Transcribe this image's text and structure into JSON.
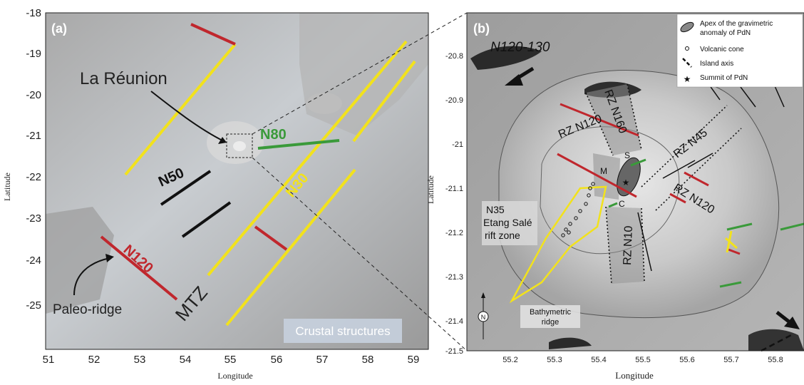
{
  "panel_a": {
    "tag": "(a)",
    "y_axis_title": "Latitude",
    "x_axis_title": "Longitude",
    "y_ticks": [
      "-18",
      "-19",
      "-20",
      "-21",
      "-22",
      "-23",
      "-24",
      "-25"
    ],
    "x_ticks": [
      "51",
      "52",
      "53",
      "54",
      "55",
      "56",
      "57",
      "58",
      "59"
    ],
    "place_label": "La Réunion",
    "paleo_label": "Paleo-ridge",
    "mtz_label": "MTZ",
    "n80_label": "N80",
    "n50_label": "N50",
    "n30_label": "N30",
    "n120_label": "N120",
    "box_caption": "Crustal structures"
  },
  "panel_b": {
    "tag": "(b)",
    "y_axis_title": "Latitude",
    "x_axis_title": "Longitude",
    "y_ticks": [
      "-20.8",
      "-20.9",
      "-21",
      "-21.1",
      "-21.2",
      "-21.3",
      "-21.4",
      "-21.5"
    ],
    "x_ticks": [
      "55.2",
      "55.3",
      "55.4",
      "55.5",
      "55.6",
      "55.7",
      "55.8"
    ],
    "direction_label": "N120-130",
    "rz_n160": "RZ N160",
    "rz_n120_a": "RZ N120",
    "rz_n45": "RZ N45",
    "rz_n120_b": "RZ N120",
    "rz_n10": "RZ N10",
    "m_label": "M",
    "s_label": "S",
    "c_label": "C",
    "etang_line1": "N35",
    "etang_line2": "Etang Salé",
    "etang_line3": "rift zone",
    "bathy_line1": "Bathymetric",
    "bathy_line2": "ridge",
    "north_label": "N",
    "legend": [
      {
        "icon": "ellipse-icon",
        "line1": "Apex of the gravimetric",
        "line2": "anomaly of PdN"
      },
      {
        "icon": "circle-icon",
        "line1": "Volcanic cone",
        "line2": ""
      },
      {
        "icon": "dashed-line-icon",
        "line1": "Island axis",
        "line2": ""
      },
      {
        "icon": "star-icon",
        "line1": "Summit of PdN",
        "line2": ""
      }
    ]
  },
  "colors": {
    "red": "#c0272d",
    "yellow": "#f2e21c",
    "green": "#3a9a3a",
    "black": "#111111"
  }
}
